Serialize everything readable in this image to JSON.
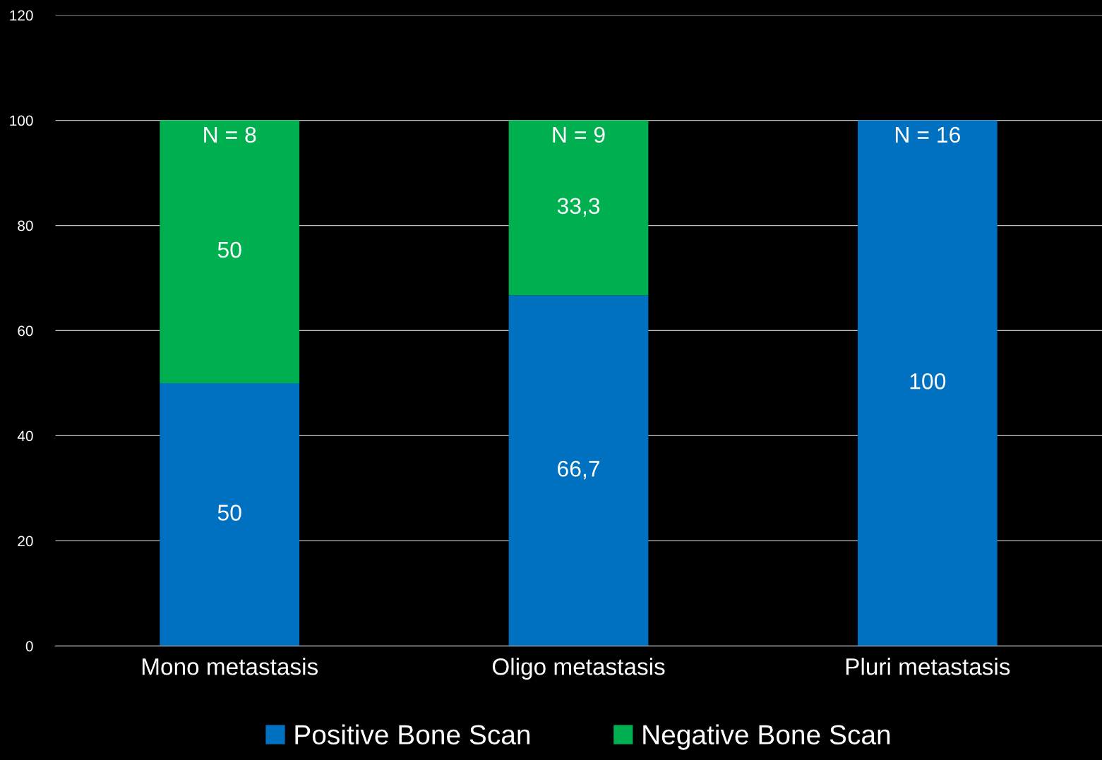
{
  "chart_data": {
    "type": "bar",
    "stacked": true,
    "categories": [
      "Mono metastasis",
      "Oligo metastasis",
      "Pluri metastasis"
    ],
    "series": [
      {
        "name": "Positive Bone Scan",
        "color": "#0070c0",
        "values": [
          50,
          66.7,
          100
        ],
        "value_labels": [
          "50",
          "66,7",
          "100"
        ]
      },
      {
        "name": "Negative Bone Scan",
        "color": "#00b050",
        "values": [
          50,
          33.3,
          null
        ],
        "value_labels": [
          "50",
          "33,3",
          null
        ]
      }
    ],
    "annotations": [
      "N = 8",
      "N = 9",
      "N = 16"
    ],
    "ylim": [
      0,
      120
    ],
    "yticks": [
      0,
      20,
      40,
      60,
      80,
      100,
      120
    ],
    "grid": "y",
    "legend": "bottom"
  }
}
